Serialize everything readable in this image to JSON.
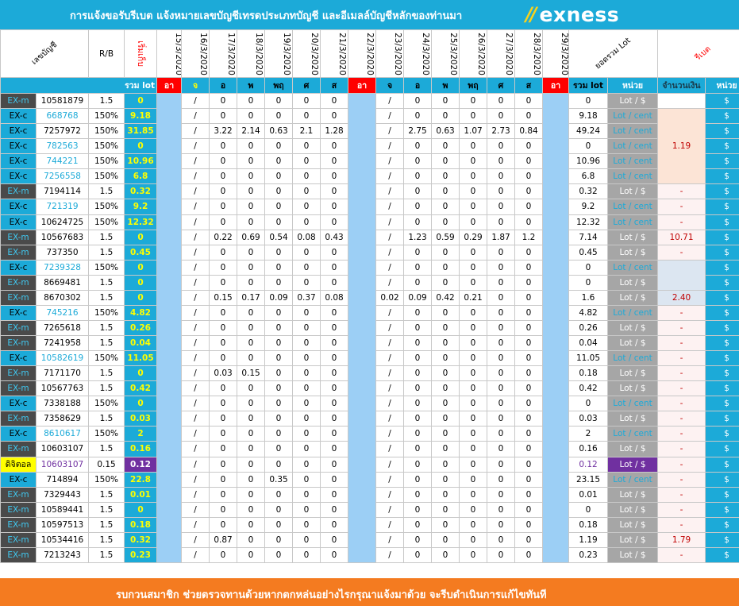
{
  "header": {
    "title": "การแจ้งขอรับรีเบต   แจ้งหมายเลขบัญชีเทรดประเภทบัญชี และอีเมลล์บัญชีหลักของท่านมา",
    "brand": "exness",
    "brand_mark": "∕∕"
  },
  "columns": {
    "account": "เลขบัญชี",
    "rb": "R/B",
    "collect": "เริ่มเก็บ",
    "dates": [
      "15/3/2020",
      "16/3/2020",
      "17/3/2020",
      "18/3/2020",
      "19/3/2020",
      "20/3/2020",
      "21/3/2020",
      "22/3/2020",
      "23/3/2020",
      "24/3/2020",
      "25/3/2020",
      "26/3/2020",
      "27/3/2020",
      "28/3/2020",
      "29/3/2020"
    ],
    "total": "ยอดรวม Lot",
    "rebate": "รีเบต"
  },
  "subheader": {
    "total_lot": "รวม lot",
    "days": [
      "อา",
      "จ",
      "อ",
      "พ",
      "พฤ",
      "ศ",
      "ส",
      "อา",
      "จ",
      "อ",
      "พ",
      "พฤ",
      "ศ",
      "ส",
      "อา"
    ],
    "sum": "รวม lot",
    "unit": "หน่วย",
    "amount": "จำนวนเงิน",
    "unit2": "หน่วย"
  },
  "rows": [
    {
      "type": "EX-m",
      "acc": "10581879",
      "rb": "1.5",
      "lot": "0",
      "w1": [
        "0",
        "0",
        "0",
        "0",
        "0"
      ],
      "w2": [
        "0",
        "0",
        "0",
        "0",
        "0"
      ],
      "total": "0",
      "unit": "Lot / $",
      "amt": ""
    },
    {
      "type": "EX-c",
      "acc": "668768",
      "rb": "150%",
      "lot": "9.18",
      "w1": [
        "0",
        "0",
        "0",
        "0",
        "0"
      ],
      "w2": [
        "0",
        "0",
        "0",
        "0",
        "0"
      ],
      "total": "9.18",
      "unit": "Lot / cent",
      "amt": ""
    },
    {
      "type": "EX-c",
      "acc": "7257972",
      "rb": "150%",
      "lot": "31.85",
      "w1": [
        "3.22",
        "2.14",
        "0.63",
        "2.1",
        "1.28"
      ],
      "w2": [
        "2.75",
        "0.63",
        "1.07",
        "2.73",
        "0.84"
      ],
      "total": "49.24",
      "unit": "Lot / cent",
      "amt": "1.19"
    },
    {
      "type": "EX-c",
      "acc": "782563",
      "rb": "150%",
      "lot": "0",
      "w1": [
        "0",
        "0",
        "0",
        "0",
        "0"
      ],
      "w2": [
        "0",
        "0",
        "0",
        "0",
        "0"
      ],
      "total": "0",
      "unit": "Lot / cent",
      "amt": ""
    },
    {
      "type": "EX-c",
      "acc": "744221",
      "rb": "150%",
      "lot": "10.96",
      "w1": [
        "0",
        "0",
        "0",
        "0",
        "0"
      ],
      "w2": [
        "0",
        "0",
        "0",
        "0",
        "0"
      ],
      "total": "10.96",
      "unit": "Lot / cent",
      "amt": ""
    },
    {
      "type": "EX-c",
      "acc": "7256558",
      "rb": "150%",
      "lot": "6.8",
      "w1": [
        "0",
        "0",
        "0",
        "0",
        "0"
      ],
      "w2": [
        "0",
        "0",
        "0",
        "0",
        "0"
      ],
      "total": "6.8",
      "unit": "Lot / cent",
      "amt": ""
    },
    {
      "type": "EX-m",
      "acc": "7194114",
      "rb": "1.5",
      "lot": "0.32",
      "w1": [
        "0",
        "0",
        "0",
        "0",
        "0"
      ],
      "w2": [
        "0",
        "0",
        "0",
        "0",
        "0"
      ],
      "total": "0.32",
      "unit": "Lot / $",
      "amt": "-"
    },
    {
      "type": "EX-c",
      "acc": "721319",
      "rb": "150%",
      "lot": "9.2",
      "w1": [
        "0",
        "0",
        "0",
        "0",
        "0"
      ],
      "w2": [
        "0",
        "0",
        "0",
        "0",
        "0"
      ],
      "total": "9.2",
      "unit": "Lot / cent",
      "amt": "-"
    },
    {
      "type": "EX-c",
      "acc": "10624725",
      "rb": "150%",
      "lot": "12.32",
      "w1": [
        "0",
        "0",
        "0",
        "0",
        "0"
      ],
      "w2": [
        "0",
        "0",
        "0",
        "0",
        "0"
      ],
      "total": "12.32",
      "unit": "Lot / cent",
      "amt": "-"
    },
    {
      "type": "EX-m",
      "acc": "10567683",
      "rb": "1.5",
      "lot": "0",
      "w1": [
        "0.22",
        "0.69",
        "0.54",
        "0.08",
        "0.43"
      ],
      "w2": [
        "1.23",
        "0.59",
        "0.29",
        "1.87",
        "1.2"
      ],
      "total": "7.14",
      "unit": "Lot / $",
      "amt": "10.71"
    },
    {
      "type": "EX-m",
      "acc": "737350",
      "rb": "1.5",
      "lot": "0.45",
      "w1": [
        "0",
        "0",
        "0",
        "0",
        "0"
      ],
      "w2": [
        "0",
        "0",
        "0",
        "0",
        "0"
      ],
      "total": "0.45",
      "unit": "Lot / $",
      "amt": "-"
    },
    {
      "type": "EX-c",
      "acc": "7239328",
      "rb": "150%",
      "lot": "0",
      "w1": [
        "0",
        "0",
        "0",
        "0",
        "0"
      ],
      "w2": [
        "0",
        "0",
        "0",
        "0",
        "0"
      ],
      "total": "0",
      "unit": "Lot / cent",
      "amt": ""
    },
    {
      "type": "EX-m",
      "acc": "8669481",
      "rb": "1.5",
      "lot": "0",
      "w1": [
        "0",
        "0",
        "0",
        "0",
        "0"
      ],
      "w2": [
        "0",
        "0",
        "0",
        "0",
        "0"
      ],
      "total": "0",
      "unit": "Lot / $",
      "amt": ""
    },
    {
      "type": "EX-m",
      "acc": "8670302",
      "rb": "1.5",
      "lot": "0",
      "w1": [
        "0.15",
        "0.17",
        "0.09",
        "0.37",
        "0.08"
      ],
      "w2sun": "0.02",
      "w2": [
        "0.09",
        "0.42",
        "0.21",
        "0",
        "0"
      ],
      "total": "1.6",
      "unit": "Lot / $",
      "amt": "2.40"
    },
    {
      "type": "EX-c",
      "acc": "745216",
      "rb": "150%",
      "lot": "4.82",
      "w1": [
        "0",
        "0",
        "0",
        "0",
        "0"
      ],
      "w2": [
        "0",
        "0",
        "0",
        "0",
        "0"
      ],
      "total": "4.82",
      "unit": "Lot / cent",
      "amt": "-"
    },
    {
      "type": "EX-m",
      "acc": "7265618",
      "rb": "1.5",
      "lot": "0.26",
      "w1": [
        "0",
        "0",
        "0",
        "0",
        "0"
      ],
      "w2": [
        "0",
        "0",
        "0",
        "0",
        "0"
      ],
      "total": "0.26",
      "unit": "Lot / $",
      "amt": "-"
    },
    {
      "type": "EX-m",
      "acc": "7241958",
      "rb": "1.5",
      "lot": "0.04",
      "w1": [
        "0",
        "0",
        "0",
        "0",
        "0"
      ],
      "w2": [
        "0",
        "0",
        "0",
        "0",
        "0"
      ],
      "total": "0.04",
      "unit": "Lot / $",
      "amt": "-"
    },
    {
      "type": "EX-c",
      "acc": "10582619",
      "rb": "150%",
      "lot": "11.05",
      "w1": [
        "0",
        "0",
        "0",
        "0",
        "0"
      ],
      "w2": [
        "0",
        "0",
        "0",
        "0",
        "0"
      ],
      "total": "11.05",
      "unit": "Lot / cent",
      "amt": "-"
    },
    {
      "type": "EX-m",
      "acc": "7171170",
      "rb": "1.5",
      "lot": "0",
      "w1": [
        "0.03",
        "0.15",
        "0",
        "0",
        "0"
      ],
      "w2": [
        "0",
        "0",
        "0",
        "0",
        "0"
      ],
      "total": "0.18",
      "unit": "Lot / $",
      "amt": "-"
    },
    {
      "type": "EX-m",
      "acc": "10567763",
      "rb": "1.5",
      "lot": "0.42",
      "w1": [
        "0",
        "0",
        "0",
        "0",
        "0"
      ],
      "w2": [
        "0",
        "0",
        "0",
        "0",
        "0"
      ],
      "total": "0.42",
      "unit": "Lot / $",
      "amt": "-"
    },
    {
      "type": "EX-c",
      "acc": "7338188",
      "rb": "150%",
      "lot": "0",
      "w1": [
        "0",
        "0",
        "0",
        "0",
        "0"
      ],
      "w2": [
        "0",
        "0",
        "0",
        "0",
        "0"
      ],
      "total": "0",
      "unit": "Lot / cent",
      "amt": "-"
    },
    {
      "type": "EX-m",
      "acc": "7358629",
      "rb": "1.5",
      "lot": "0.03",
      "w1": [
        "0",
        "0",
        "0",
        "0",
        "0"
      ],
      "w2": [
        "0",
        "0",
        "0",
        "0",
        "0"
      ],
      "total": "0.03",
      "unit": "Lot / $",
      "amt": "-"
    },
    {
      "type": "EX-c",
      "acc": "8610617",
      "rb": "150%",
      "lot": "2",
      "w1": [
        "0",
        "0",
        "0",
        "0",
        "0"
      ],
      "w2": [
        "0",
        "0",
        "0",
        "0",
        "0"
      ],
      "total": "2",
      "unit": "Lot / cent",
      "amt": "-"
    },
    {
      "type": "EX-m",
      "acc": "10603107",
      "rb": "1.5",
      "lot": "0.16",
      "w1": [
        "0",
        "0",
        "0",
        "0",
        "0"
      ],
      "w2": [
        "0",
        "0",
        "0",
        "0",
        "0"
      ],
      "total": "0.16",
      "unit": "Lot / $",
      "amt": "-"
    },
    {
      "type": "ดิจิตอล",
      "acc": "10603107",
      "rb": "0.15",
      "lot": "0.12",
      "w1": [
        "0",
        "0",
        "0",
        "0",
        "0"
      ],
      "w2": [
        "0",
        "0",
        "0",
        "0",
        "0"
      ],
      "total": "0.12",
      "unit": "Lot / $",
      "amt": "-"
    },
    {
      "type": "EX-c",
      "acc": "714894",
      "rb": "150%",
      "lot": "22.8",
      "w1": [
        "0",
        "0",
        "0.35",
        "0",
        "0"
      ],
      "w2": [
        "0",
        "0",
        "0",
        "0",
        "0"
      ],
      "total": "23.15",
      "unit": "Lot / cent",
      "amt": "-"
    },
    {
      "type": "EX-m",
      "acc": "7329443",
      "rb": "1.5",
      "lot": "0.01",
      "w1": [
        "0",
        "0",
        "0",
        "0",
        "0"
      ],
      "w2": [
        "0",
        "0",
        "0",
        "0",
        "0"
      ],
      "total": "0.01",
      "unit": "Lot / $",
      "amt": "-"
    },
    {
      "type": "EX-m",
      "acc": "10589441",
      "rb": "1.5",
      "lot": "0",
      "w1": [
        "0",
        "0",
        "0",
        "0",
        "0"
      ],
      "w2": [
        "0",
        "0",
        "0",
        "0",
        "0"
      ],
      "total": "0",
      "unit": "Lot / $",
      "amt": "-"
    },
    {
      "type": "EX-m",
      "acc": "10597513",
      "rb": "1.5",
      "lot": "0.18",
      "w1": [
        "0",
        "0",
        "0",
        "0",
        "0"
      ],
      "w2": [
        "0",
        "0",
        "0",
        "0",
        "0"
      ],
      "total": "0.18",
      "unit": "Lot / $",
      "amt": "-"
    },
    {
      "type": "EX-m",
      "acc": "10534416",
      "rb": "1.5",
      "lot": "0.32",
      "w1": [
        "0.87",
        "0",
        "0",
        "0",
        "0"
      ],
      "w2": [
        "0",
        "0",
        "0",
        "0",
        "0"
      ],
      "total": "1.19",
      "unit": "Lot / $",
      "amt": "1.79"
    },
    {
      "type": "EX-m",
      "acc": "7213243",
      "rb": "1.5",
      "lot": "0.23",
      "w1": [
        "0",
        "0",
        "0",
        "0",
        "0"
      ],
      "w2": [
        "0",
        "0",
        "0",
        "0",
        "0"
      ],
      "total": "0.23",
      "unit": "Lot / $",
      "amt": "-"
    }
  ],
  "slash": "/",
  "dollar_sign": "$",
  "footer": "รบกวนสมาชิก ช่วยตรวจทานด้วยหากตกหล่นอย่างไรกรุณาแจ้งมาด้วย จะรีบดำเนินการแก้ไขทันที",
  "colors": {
    "accent": "#1caad8",
    "footer": "#f47b20",
    "sunday": "#ff0000",
    "highlight": "#ffff00",
    "digital": "#7030a0"
  }
}
